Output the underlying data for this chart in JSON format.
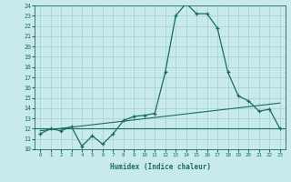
{
  "xlabel": "Humidex (Indice chaleur)",
  "ylabel": "",
  "background_color": "#c8eaeb",
  "grid_color": "#a8d4d2",
  "line_color": "#1a6b65",
  "x_data": [
    0,
    1,
    2,
    3,
    4,
    5,
    6,
    7,
    8,
    9,
    10,
    11,
    12,
    13,
    14,
    15,
    16,
    17,
    18,
    19,
    20,
    21,
    22,
    23
  ],
  "y_main": [
    11.5,
    12.0,
    11.8,
    12.2,
    10.3,
    11.3,
    10.5,
    11.5,
    12.8,
    13.2,
    13.3,
    13.5,
    17.5,
    23.0,
    24.2,
    23.2,
    23.2,
    21.8,
    17.5,
    15.2,
    14.7,
    13.7,
    13.9,
    12.0
  ],
  "ylim": [
    10,
    24
  ],
  "xlim": [
    -0.5,
    23.5
  ],
  "yticks": [
    10,
    11,
    12,
    13,
    14,
    15,
    16,
    17,
    18,
    19,
    20,
    21,
    22,
    23,
    24
  ],
  "xticks": [
    0,
    1,
    2,
    3,
    4,
    5,
    6,
    7,
    8,
    9,
    10,
    11,
    12,
    13,
    14,
    15,
    16,
    17,
    18,
    19,
    20,
    21,
    22,
    23
  ],
  "trend_x": [
    0,
    23
  ],
  "trend_y": [
    11.8,
    14.5
  ],
  "hline_y": 12.0
}
